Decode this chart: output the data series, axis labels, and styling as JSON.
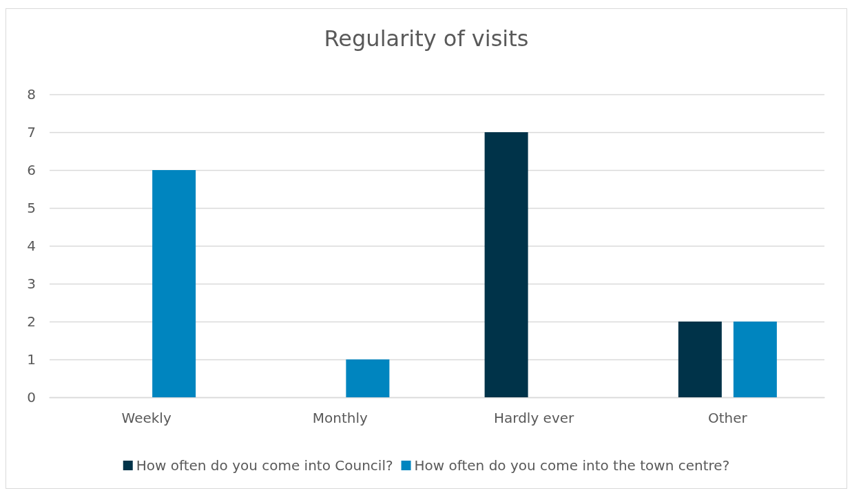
{
  "chart_data": {
    "type": "bar",
    "title": "Regularity of visits",
    "categories": [
      "Weekly",
      "Monthly",
      "Hardly ever",
      "Other"
    ],
    "series": [
      {
        "name": "How often do you come into Council?",
        "color": "#003349",
        "values": [
          0,
          0,
          7,
          2
        ]
      },
      {
        "name": "How often do you come into the town centre?",
        "color": "#0085bf",
        "values": [
          6,
          1,
          0,
          2
        ]
      }
    ],
    "ylim": [
      0,
      8
    ],
    "yticks": [
      0,
      1,
      2,
      3,
      4,
      5,
      6,
      7,
      8
    ],
    "grid": "y",
    "legend": "bottom"
  }
}
